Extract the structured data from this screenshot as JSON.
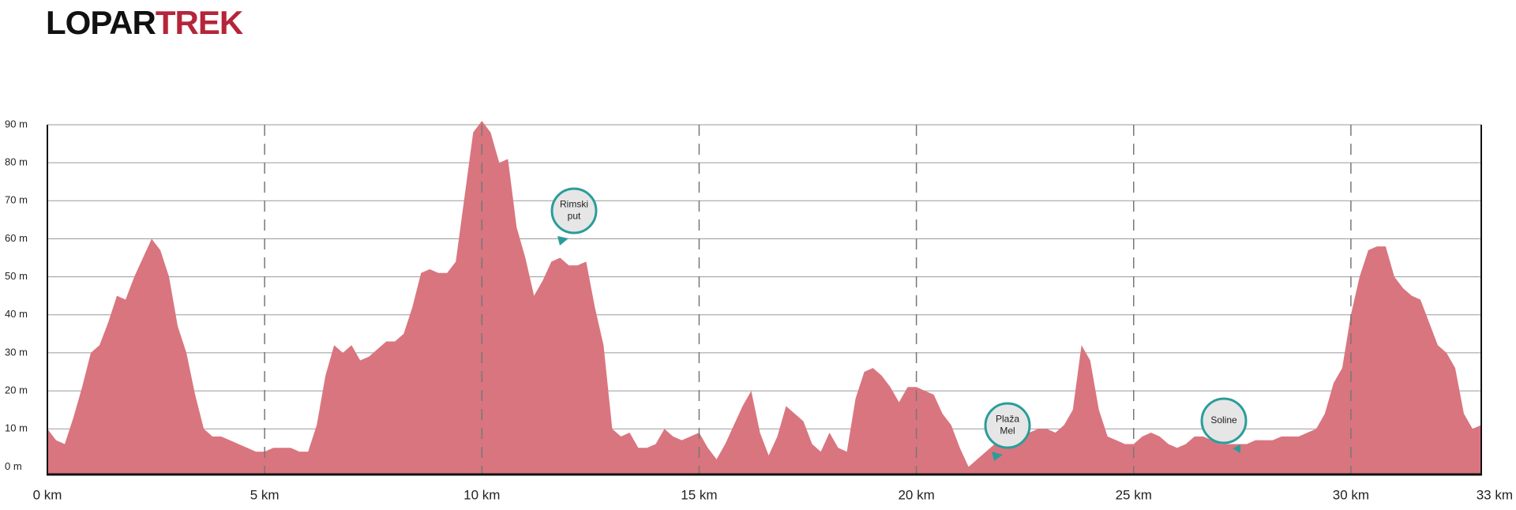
{
  "chart_data": {
    "type": "area",
    "brand": [
      "LOPAR",
      "TREK"
    ],
    "color": "#d9757f",
    "grid": true,
    "xlim": [
      0,
      33
    ],
    "ylim": [
      -2,
      90
    ],
    "xticks": [
      {
        "value": 0,
        "label": "0 km"
      },
      {
        "value": 5,
        "label": "5 km"
      },
      {
        "value": 10,
        "label": "10 km"
      },
      {
        "value": 15,
        "label": "15 km"
      },
      {
        "value": 20,
        "label": "20 km"
      },
      {
        "value": 25,
        "label": "25 km"
      },
      {
        "value": 30,
        "label": "30 km"
      },
      {
        "value": 33,
        "label": "33 km"
      }
    ],
    "yticks": [
      {
        "value": 0,
        "label": "0 m"
      },
      {
        "value": 10,
        "label": "10 m"
      },
      {
        "value": 20,
        "label": "20 m"
      },
      {
        "value": 30,
        "label": "30 m"
      },
      {
        "value": 40,
        "label": "40 m"
      },
      {
        "value": 50,
        "label": "50 m"
      },
      {
        "value": 60,
        "label": "60 m"
      },
      {
        "value": 70,
        "label": "70 m"
      },
      {
        "value": 80,
        "label": "80 m"
      },
      {
        "value": 90,
        "label": "90 m"
      }
    ],
    "x": [
      0,
      0.2,
      0.4,
      0.6,
      0.8,
      1,
      1.2,
      1.4,
      1.6,
      1.8,
      2,
      2.2,
      2.4,
      2.6,
      2.8,
      3,
      3.2,
      3.4,
      3.6,
      3.8,
      4,
      4.2,
      4.4,
      4.6,
      4.8,
      5,
      5.2,
      5.4,
      5.6,
      5.8,
      6,
      6.2,
      6.4,
      6.6,
      6.8,
      7,
      7.2,
      7.4,
      7.6,
      7.8,
      8,
      8.2,
      8.4,
      8.6,
      8.8,
      9,
      9.2,
      9.4,
      9.6,
      9.8,
      10,
      10.2,
      10.4,
      10.6,
      10.8,
      11,
      11.2,
      11.4,
      11.6,
      11.8,
      12,
      12.2,
      12.4,
      12.6,
      12.8,
      13,
      13.2,
      13.4,
      13.6,
      13.8,
      14,
      14.2,
      14.4,
      14.6,
      14.8,
      15,
      15.2,
      15.4,
      15.6,
      15.8,
      16,
      16.2,
      16.4,
      16.6,
      16.8,
      17,
      17.2,
      17.4,
      17.6,
      17.8,
      18,
      18.2,
      18.4,
      18.6,
      18.8,
      19,
      19.2,
      19.4,
      19.6,
      19.8,
      20,
      20.2,
      20.4,
      20.6,
      20.8,
      21,
      21.2,
      21.4,
      21.6,
      21.8,
      22,
      22.2,
      22.4,
      22.6,
      22.8,
      23,
      23.2,
      23.4,
      23.6,
      23.8,
      24,
      24.2,
      24.4,
      24.6,
      24.8,
      25,
      25.2,
      25.4,
      25.6,
      25.8,
      26,
      26.2,
      26.4,
      26.6,
      26.8,
      27,
      27.2,
      27.4,
      27.6,
      27.8,
      28,
      28.2,
      28.4,
      28.6,
      28.8,
      29,
      29.2,
      29.4,
      29.6,
      29.8,
      30,
      30.2,
      30.4,
      30.6,
      30.8,
      31,
      31.2,
      31.4,
      31.6,
      31.8,
      32,
      32.2,
      32.4,
      32.6,
      32.8,
      33
    ],
    "values": [
      10,
      7,
      6,
      13,
      21,
      30,
      32,
      38,
      45,
      44,
      50,
      55,
      60,
      57,
      50,
      37,
      30,
      19,
      10,
      8,
      8,
      7,
      6,
      5,
      4,
      4,
      5,
      5,
      5,
      4,
      4,
      11,
      24,
      32,
      30,
      32,
      28,
      29,
      31,
      33,
      33,
      35,
      42,
      51,
      52,
      51,
      51,
      54,
      71,
      88,
      91,
      88,
      80,
      81,
      63,
      55,
      45,
      49,
      54,
      55,
      53,
      53,
      54,
      42,
      32,
      10,
      8,
      9,
      5,
      5,
      6,
      10,
      8,
      7,
      8,
      9,
      5,
      2,
      6,
      11,
      16,
      20,
      9,
      3,
      8,
      16,
      14,
      12,
      6,
      4,
      9,
      5,
      4,
      18,
      25,
      26,
      24,
      21,
      17,
      21,
      21,
      20,
      19,
      14,
      11,
      5,
      0,
      2,
      4,
      6,
      9,
      12,
      9,
      9,
      10,
      10,
      9,
      11,
      15,
      32,
      28,
      15,
      8,
      7,
      6,
      6,
      8,
      9,
      8,
      6,
      5,
      6,
      8,
      8,
      7,
      6,
      6,
      6,
      6,
      7,
      7,
      7,
      8,
      8,
      8,
      9,
      10,
      14,
      22,
      26,
      40,
      50,
      57,
      58,
      58,
      50,
      47,
      45,
      44,
      38,
      32,
      30,
      26,
      14,
      10,
      11
    ],
    "annotations": [
      [
        "Rimski",
        "put"
      ],
      [
        "Plaža",
        "Mel"
      ],
      [
        "Soline"
      ]
    ]
  }
}
